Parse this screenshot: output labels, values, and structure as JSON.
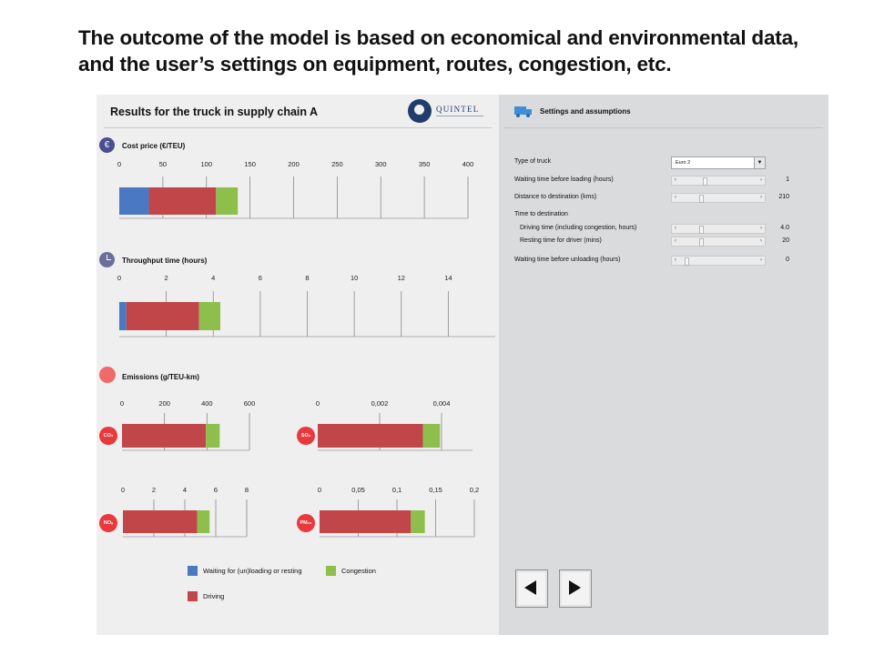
{
  "headline": {
    "line1": "The outcome of the model is based on economical and environmental data,",
    "line2": "and the user’s settings on equipment, routes, congestion, etc."
  },
  "results": {
    "title": "Results for the truck in supply chain A",
    "logo_text": "QUINTEL",
    "cost_title": "Cost price (€/TEU)",
    "throughput_title": "Throughput time (hours)",
    "emissions_title": "Emissions (g/TEU-km)"
  },
  "colors": {
    "waiting": "#4a78c2",
    "driving": "#c0464a",
    "congestion": "#8ebf4c"
  },
  "chart_data": [
    {
      "type": "bar",
      "title": "Cost price (€/TEU)",
      "ticks": [
        "0",
        "50",
        "100",
        "150",
        "200",
        "250",
        "300",
        "350",
        "400"
      ],
      "xlim": [
        0,
        400
      ],
      "series": [
        {
          "name": "Waiting for (un)loading or resting",
          "values": [
            34
          ]
        },
        {
          "name": "Driving",
          "values": [
            77
          ]
        },
        {
          "name": "Congestion",
          "values": [
            25
          ]
        }
      ]
    },
    {
      "type": "bar",
      "title": "Throughput time (hours)",
      "ticks": [
        "0",
        "2",
        "4",
        "6",
        "8",
        "10",
        "12",
        "14"
      ],
      "xlim": [
        0,
        16
      ],
      "series": [
        {
          "name": "Waiting for (un)loading or resting",
          "values": [
            0.3
          ]
        },
        {
          "name": "Driving",
          "values": [
            3.1
          ]
        },
        {
          "name": "Congestion",
          "values": [
            0.9
          ]
        }
      ]
    },
    {
      "type": "bar",
      "title": "CO₂",
      "badge": "CO₂",
      "ticks": [
        "0",
        "200",
        "400",
        "600"
      ],
      "xlim": [
        0,
        600
      ],
      "series": [
        {
          "name": "Driving",
          "values": [
            395
          ]
        },
        {
          "name": "Congestion",
          "values": [
            65
          ]
        }
      ]
    },
    {
      "type": "bar",
      "title": "SO₂",
      "badge": "SO₂",
      "ticks": [
        "0",
        "0,002",
        "0,004"
      ],
      "xlim": [
        0,
        0.005
      ],
      "series": [
        {
          "name": "Driving",
          "values": [
            0.0034
          ]
        },
        {
          "name": "Congestion",
          "values": [
            0.00055
          ]
        }
      ]
    },
    {
      "type": "bar",
      "title": "NOₓ",
      "badge": "NOₓ",
      "ticks": [
        "0",
        "2",
        "4",
        "6",
        "8"
      ],
      "xlim": [
        0,
        8
      ],
      "series": [
        {
          "name": "Driving",
          "values": [
            4.8
          ]
        },
        {
          "name": "Congestion",
          "values": [
            0.8
          ]
        }
      ]
    },
    {
      "type": "bar",
      "title": "PM₁₀",
      "badge": "PM₁₀",
      "ticks": [
        "0",
        "0,05",
        "0,1",
        "0,15",
        "0,2"
      ],
      "xlim": [
        0,
        0.2
      ],
      "series": [
        {
          "name": "Driving",
          "values": [
            0.118
          ]
        },
        {
          "name": "Congestion",
          "values": [
            0.018
          ]
        }
      ]
    }
  ],
  "legend": {
    "waiting": "Waiting for (un)loading or resting",
    "congestion": "Congestion",
    "driving": "Driving"
  },
  "settings": {
    "title": "Settings and assumptions",
    "truck_type_label": "Type of truck",
    "truck_type_value": "Euro 2",
    "wait_loading_label": "Waiting time before loading (hours)",
    "wait_loading_value": "1",
    "distance_label": "Distance to destination (kms)",
    "distance_value": "210",
    "time_dest_label": "Time to destination",
    "driving_time_label": "Driving time (including congestion, hours)",
    "driving_time_value": "4.0",
    "resting_label": "Resting time for driver (mins)",
    "resting_value": "20",
    "wait_unloading_label": "Waiting time before unloading (hours)",
    "wait_unloading_value": "0"
  },
  "sliders": {
    "wait_loading": 0.3,
    "distance": 0.25,
    "driving_time": 0.25,
    "resting": 0.25,
    "wait_unloading": 0.05
  }
}
